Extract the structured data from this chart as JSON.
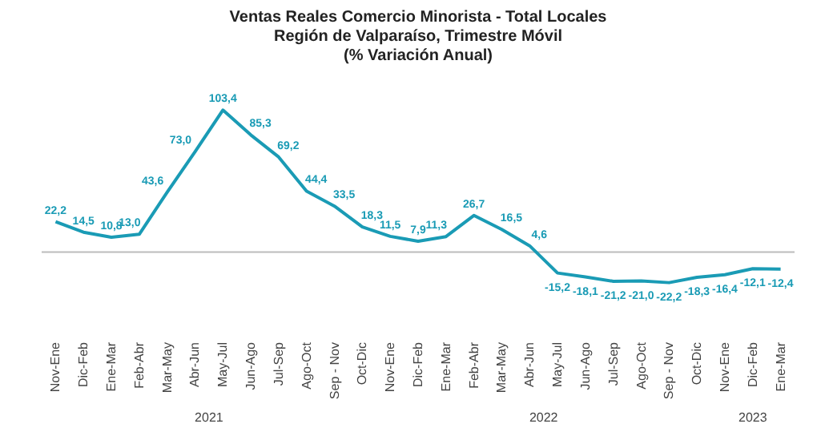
{
  "chart_data": {
    "type": "line",
    "title": [
      "Ventas Reales Comercio Minorista - Total Locales",
      "Región de Valparaíso, Trimestre Móvil",
      "(% Variación Anual)"
    ],
    "categories": [
      "Nov-Ene",
      "Dic-Feb",
      "Ene-Mar",
      "Feb-Abr",
      "Mar-May",
      "Abr-Jun",
      "May-Jul",
      "Jun-Ago",
      "Jul-Sep",
      "Ago-Oct",
      "Sep - Nov",
      "Oct-Dic",
      "Nov-Ene",
      "Dic-Feb",
      "Ene-Mar",
      "Feb-Abr",
      "Mar-May",
      "Abr-Jun",
      "May-Jul",
      "Jun-Ago",
      "Jul-Sep",
      "Ago-Oct",
      "Sep - Nov",
      "Oct-Dic",
      "Nov-Ene",
      "Dic-Feb",
      "Ene-Mar"
    ],
    "series": [
      {
        "color": "#1a9bb5",
        "values": [
          22.2,
          14.5,
          10.8,
          13.0,
          43.6,
          73.0,
          103.4,
          85.3,
          69.2,
          44.4,
          33.5,
          18.3,
          11.5,
          7.9,
          11.3,
          26.7,
          16.5,
          4.6,
          -15.2,
          -18.1,
          -21.2,
          -21.0,
          -22.2,
          -18.3,
          -16.4,
          -12.1,
          -12.4
        ],
        "value_labels": [
          "22,2",
          "14,5",
          "10,8",
          "13,0",
          "43,6",
          "73,0",
          "103,4",
          "85,3",
          "69,2",
          "44,4",
          "33,5",
          "18,3",
          "11,5",
          "7,9",
          "11,3",
          "26,7",
          "16,5",
          "4,6",
          "-15,2",
          "-18,1",
          "-21,2",
          "-21,0",
          "-22,2",
          "-18,3",
          "-16,4",
          "-12,1",
          "-12,4"
        ]
      }
    ],
    "marker": "none",
    "line_style": "solid",
    "grid": false,
    "annotations": [
      "2021",
      "2022",
      "2023"
    ]
  }
}
